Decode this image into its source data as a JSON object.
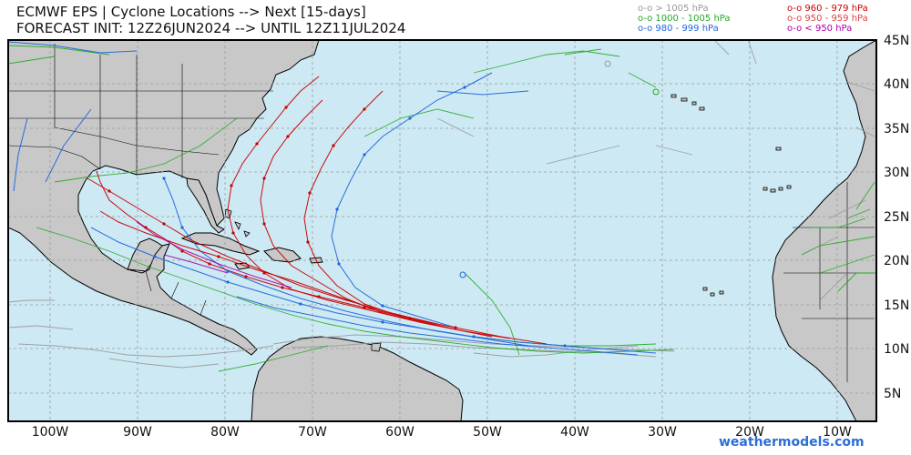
{
  "header": {
    "title_line1": "ECMWF EPS | Cyclone Locations --> Next [15-days]",
    "title_line2": "FORECAST INIT: 12Z26JUN2024 --> UNTIL 12Z11JUL2024"
  },
  "legend": [
    {
      "label": "o-o > 1005 hPa",
      "color": "#999999"
    },
    {
      "label": "o-o 1000 - 1005 hPa",
      "color": "#22aa22"
    },
    {
      "label": "o-o 980 - 999 hPa",
      "color": "#2266dd"
    },
    {
      "label": "o-o 960 - 979 hPa",
      "color": "#cc0000"
    },
    {
      "label": "o-o 950 - 959 hPa",
      "color": "#dd4444"
    },
    {
      "label": "o-o < 950 hPa",
      "color": "#aa00aa"
    }
  ],
  "map": {
    "lon_range": [
      -105,
      -5
    ],
    "lat_range": [
      2,
      45
    ],
    "ocean_color": "#cde9f3",
    "land_color": "#c8c8c8",
    "lat_labels": [
      "45N",
      "40N",
      "35N",
      "30N",
      "25N",
      "20N",
      "15N",
      "10N",
      "5N"
    ],
    "lon_labels": [
      "100W",
      "90W",
      "80W",
      "70W",
      "60W",
      "50W",
      "40W",
      "30W",
      "20W",
      "10W"
    ]
  },
  "branding": "weathermodels.com"
}
